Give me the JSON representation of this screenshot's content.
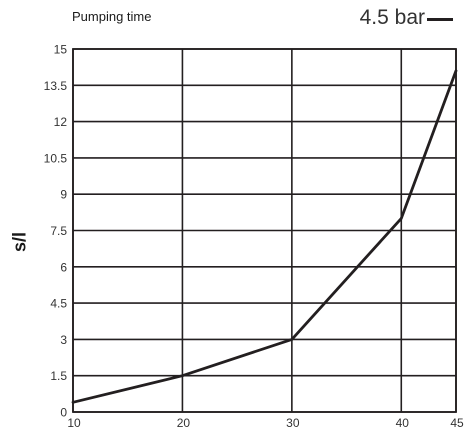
{
  "chart_data": {
    "type": "line",
    "title": "Pumping time",
    "xlabel": "",
    "ylabel": "s/l",
    "x": [
      10,
      20,
      30,
      40,
      45
    ],
    "series": [
      {
        "name": "4.5 bar",
        "values": [
          0.4,
          1.5,
          3.0,
          8.0,
          14.1
        ],
        "color": "#231f20"
      }
    ],
    "xlim": [
      10,
      45
    ],
    "ylim": [
      0,
      15
    ],
    "xticks": [
      10,
      20,
      30,
      40,
      45
    ],
    "yticks": [
      0,
      1.5,
      3,
      4.5,
      6,
      7.5,
      9,
      10.5,
      12,
      13.5,
      15
    ],
    "xtick_labels": [
      "10",
      "20",
      "30",
      "40",
      "45"
    ],
    "ytick_labels": [
      "0",
      "1.5",
      "3",
      "4.5",
      "6",
      "7.5",
      "9",
      "10.5",
      "12",
      "13.5",
      "15"
    ],
    "grid": true,
    "legend_position": "top-right"
  }
}
